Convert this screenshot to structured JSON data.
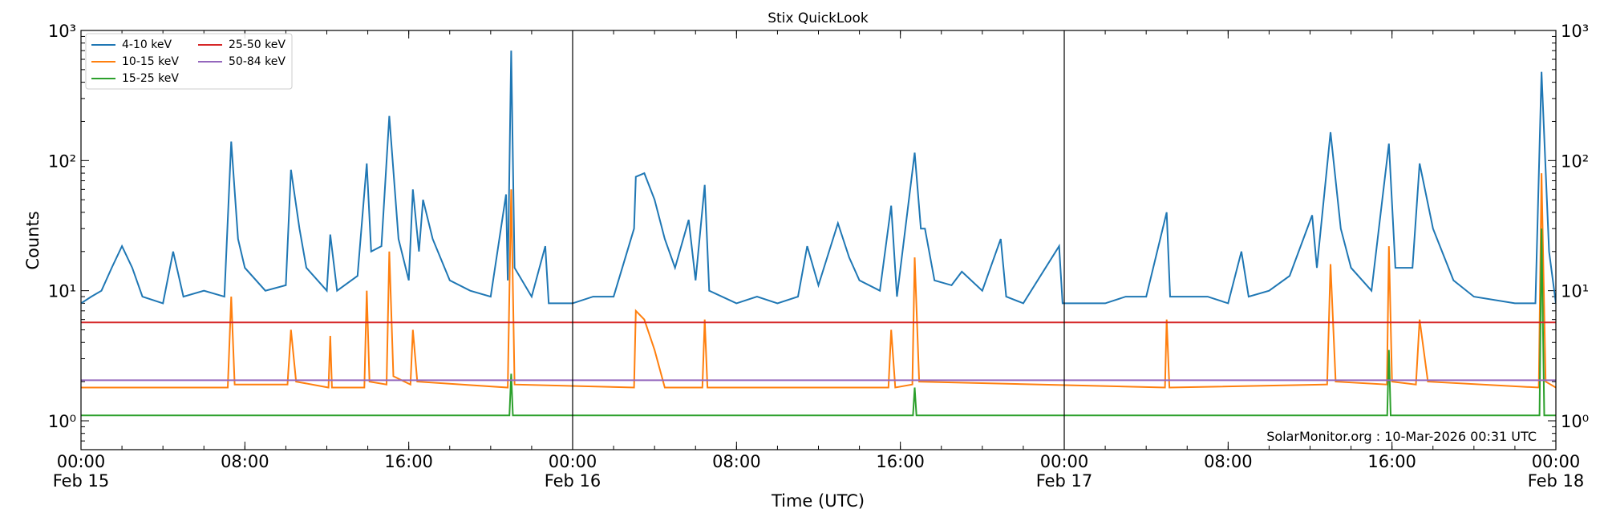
{
  "chart_data": {
    "type": "line",
    "title": "Stix QuickLook",
    "x_label": "Time (UTC)",
    "y_label": "Counts",
    "annotation": "SolarMonitor.org : 10-Mar-2026 00:31 UTC",
    "log_y": true,
    "ylim": [
      0.6,
      1000
    ],
    "yticks": [
      {
        "value": 1,
        "label": "10⁰"
      },
      {
        "value": 10,
        "label": "10¹"
      },
      {
        "value": 100,
        "label": "10²"
      },
      {
        "value": 1000,
        "label": "10³"
      }
    ],
    "xlim": [
      "Feb 15 00:00",
      "Feb 18 00:00"
    ],
    "xticks": [
      {
        "value": "Feb 15 00:00",
        "label": "00:00\nFeb 15"
      },
      {
        "value": "Feb 15 08:00",
        "label": "08:00"
      },
      {
        "value": "Feb 15 16:00",
        "label": "16:00"
      },
      {
        "value": "Feb 16 00:00",
        "label": "00:00\nFeb 16"
      },
      {
        "value": "Feb 16 08:00",
        "label": "08:00"
      },
      {
        "value": "Feb 16 16:00",
        "label": "16:00"
      },
      {
        "value": "Feb 17 00:00",
        "label": "00:00\nFeb 17"
      },
      {
        "value": "Feb 17 08:00",
        "label": "08:00"
      },
      {
        "value": "Feb 17 16:00",
        "label": "16:00"
      },
      {
        "value": "Feb 18 00:00",
        "label": "00:00\nFeb 18"
      }
    ],
    "vlines": [
      "Feb 16 00:00",
      "Feb 17 00:00"
    ],
    "legend": "upper left",
    "series": [
      {
        "name": "4-10 keV",
        "color": "#1f77b4",
        "x": [
          "Feb 15 00:00",
          "Feb 15 00:30",
          "Feb 15 01:00",
          "Feb 15 01:30",
          "Feb 15 02:00",
          "Feb 15 02:30",
          "Feb 15 03:00",
          "Feb 15 04:00",
          "Feb 15 04:30",
          "Feb 15 05:00",
          "Feb 15 06:00",
          "Feb 15 07:00",
          "Feb 15 07:20",
          "Feb 15 07:40",
          "Feb 15 08:00",
          "Feb 15 09:00",
          "Feb 15 10:00",
          "Feb 15 10:15",
          "Feb 15 10:40",
          "Feb 15 11:00",
          "Feb 15 12:00",
          "Feb 15 12:10",
          "Feb 15 12:30",
          "Feb 15 13:30",
          "Feb 15 13:57",
          "Feb 15 14:10",
          "Feb 15 14:40",
          "Feb 15 15:03",
          "Feb 15 15:30",
          "Feb 15 16:00",
          "Feb 15 16:12",
          "Feb 15 16:30",
          "Feb 15 16:42",
          "Feb 15 17:10",
          "Feb 15 18:00",
          "Feb 15 19:00",
          "Feb 15 20:00",
          "Feb 15 20:45",
          "Feb 15 20:50",
          "Feb 15 21:00",
          "Feb 15 21:10",
          "Feb 15 22:00",
          "Feb 15 22:40",
          "Feb 15 22:50",
          "Feb 15 23:30",
          "Feb 16 00:00",
          "Feb 16 01:00",
          "Feb 16 02:00",
          "Feb 16 03:00",
          "Feb 16 03:05",
          "Feb 16 03:30",
          "Feb 16 04:00",
          "Feb 16 04:30",
          "Feb 16 05:00",
          "Feb 16 05:40",
          "Feb 16 06:00",
          "Feb 16 06:27",
          "Feb 16 06:40",
          "Feb 16 08:00",
          "Feb 16 09:00",
          "Feb 16 10:00",
          "Feb 16 11:00",
          "Feb 16 11:27",
          "Feb 16 12:00",
          "Feb 16 12:57",
          "Feb 16 13:30",
          "Feb 16 14:00",
          "Feb 16 15:00",
          "Feb 16 15:33",
          "Feb 16 15:50",
          "Feb 16 16:42",
          "Feb 16 17:00",
          "Feb 16 17:12",
          "Feb 16 17:40",
          "Feb 16 18:30",
          "Feb 16 19:00",
          "Feb 16 20:00",
          "Feb 16 20:54",
          "Feb 16 21:10",
          "Feb 16 22:00",
          "Feb 16 23:45",
          "Feb 16 23:55",
          "Feb 17 00:00",
          "Feb 17 02:00",
          "Feb 17 03:00",
          "Feb 17 04:00",
          "Feb 17 05:00",
          "Feb 17 05:10",
          "Feb 17 07:00",
          "Feb 17 08:00",
          "Feb 17 08:39",
          "Feb 17 09:00",
          "Feb 17 10:00",
          "Feb 17 11:00",
          "Feb 17 12:06",
          "Feb 17 12:20",
          "Feb 17 13:00",
          "Feb 17 13:30",
          "Feb 17 14:00",
          "Feb 17 15:00",
          "Feb 17 15:51",
          "Feb 17 16:10",
          "Feb 17 17:00",
          "Feb 17 17:21",
          "Feb 17 18:00",
          "Feb 17 19:00",
          "Feb 17 20:00",
          "Feb 17 22:00",
          "Feb 17 23:00",
          "Feb 17 23:18",
          "Feb 17 23:40",
          "Feb 18 00:00"
        ],
        "values": [
          8,
          9,
          10,
          15,
          22,
          15,
          9,
          8,
          20,
          9,
          10,
          9,
          140,
          25,
          15,
          10,
          11,
          85,
          30,
          15,
          10,
          27,
          10,
          13,
          95,
          20,
          22,
          220,
          25,
          12,
          60,
          20,
          50,
          25,
          12,
          10,
          9,
          55,
          12,
          700,
          15,
          9,
          22,
          8,
          8,
          8,
          9,
          9,
          30,
          75,
          80,
          50,
          25,
          15,
          35,
          12,
          65,
          10,
          8,
          9,
          8,
          9,
          22,
          11,
          33,
          18,
          12,
          10,
          45,
          9,
          115,
          30,
          30,
          12,
          11,
          14,
          10,
          25,
          9,
          8,
          22,
          8,
          8,
          8,
          9,
          9,
          40,
          9,
          9,
          8,
          20,
          9,
          10,
          13,
          38,
          15,
          165,
          30,
          15,
          10,
          135,
          15,
          15,
          95,
          30,
          12,
          9,
          8,
          8,
          480,
          20,
          8
        ]
      },
      {
        "name": "10-15 keV",
        "color": "#ff7f0e",
        "x": [
          "Feb 15 00:00",
          "Feb 15 07:10",
          "Feb 15 07:20",
          "Feb 15 07:30",
          "Feb 15 10:05",
          "Feb 15 10:15",
          "Feb 15 10:30",
          "Feb 15 12:05",
          "Feb 15 12:10",
          "Feb 15 12:15",
          "Feb 15 13:50",
          "Feb 15 13:57",
          "Feb 15 14:05",
          "Feb 15 14:55",
          "Feb 15 15:03",
          "Feb 15 15:15",
          "Feb 15 16:05",
          "Feb 15 16:12",
          "Feb 15 16:25",
          "Feb 15 20:50",
          "Feb 15 21:00",
          "Feb 15 21:10",
          "Feb 16 03:00",
          "Feb 16 03:05",
          "Feb 16 03:30",
          "Feb 16 04:00",
          "Feb 16 04:30",
          "Feb 16 06:20",
          "Feb 16 06:27",
          "Feb 16 06:35",
          "Feb 16 15:25",
          "Feb 16 15:33",
          "Feb 16 15:45",
          "Feb 16 16:35",
          "Feb 16 16:42",
          "Feb 16 16:55",
          "Feb 17 04:55",
          "Feb 17 05:00",
          "Feb 17 05:08",
          "Feb 17 12:50",
          "Feb 17 13:00",
          "Feb 17 13:15",
          "Feb 17 15:45",
          "Feb 17 15:51",
          "Feb 17 16:00",
          "Feb 17 17:10",
          "Feb 17 17:21",
          "Feb 17 17:45",
          "Feb 17 23:10",
          "Feb 17 23:18",
          "Feb 17 23:30",
          "Feb 18 00:00"
        ],
        "values": [
          1.8,
          1.8,
          9,
          1.9,
          1.9,
          5,
          2,
          1.8,
          4.5,
          1.8,
          1.8,
          10,
          2,
          1.9,
          20,
          2.2,
          1.9,
          5,
          2,
          1.8,
          60,
          1.9,
          1.8,
          7,
          6,
          3.5,
          1.8,
          1.8,
          6,
          1.8,
          1.8,
          5,
          1.8,
          1.9,
          18,
          2,
          1.8,
          6,
          1.8,
          1.9,
          16,
          2,
          1.9,
          22,
          2,
          1.9,
          6,
          2,
          1.8,
          80,
          2,
          1.8
        ]
      },
      {
        "name": "15-25 keV",
        "color": "#2ca02c",
        "x": [
          "Feb 15 00:00",
          "Feb 15 20:55",
          "Feb 15 21:00",
          "Feb 15 21:05",
          "Feb 16 16:37",
          "Feb 16 16:42",
          "Feb 16 16:47",
          "Feb 17 15:46",
          "Feb 17 15:51",
          "Feb 17 15:56",
          "Feb 17 23:12",
          "Feb 17 23:18",
          "Feb 17 23:26",
          "Feb 18 00:00"
        ],
        "values": [
          1.1,
          1.1,
          2.3,
          1.1,
          1.1,
          1.8,
          1.1,
          1.1,
          3.5,
          1.1,
          1.1,
          30,
          1.1,
          1.1
        ]
      },
      {
        "name": "25-50 keV",
        "color": "#d62728",
        "x": [
          "Feb 15 00:00",
          "Feb 16 00:00",
          "Feb 17 00:00",
          "Feb 18 00:00"
        ],
        "values": [
          5.7,
          5.7,
          5.7,
          5.7
        ]
      },
      {
        "name": "50-84 keV",
        "color": "#9467bd",
        "x": [
          "Feb 15 00:00",
          "Feb 16 00:00",
          "Feb 17 00:00",
          "Feb 18 00:00"
        ],
        "values": [
          2.05,
          2.05,
          2.05,
          2.05
        ]
      }
    ]
  }
}
